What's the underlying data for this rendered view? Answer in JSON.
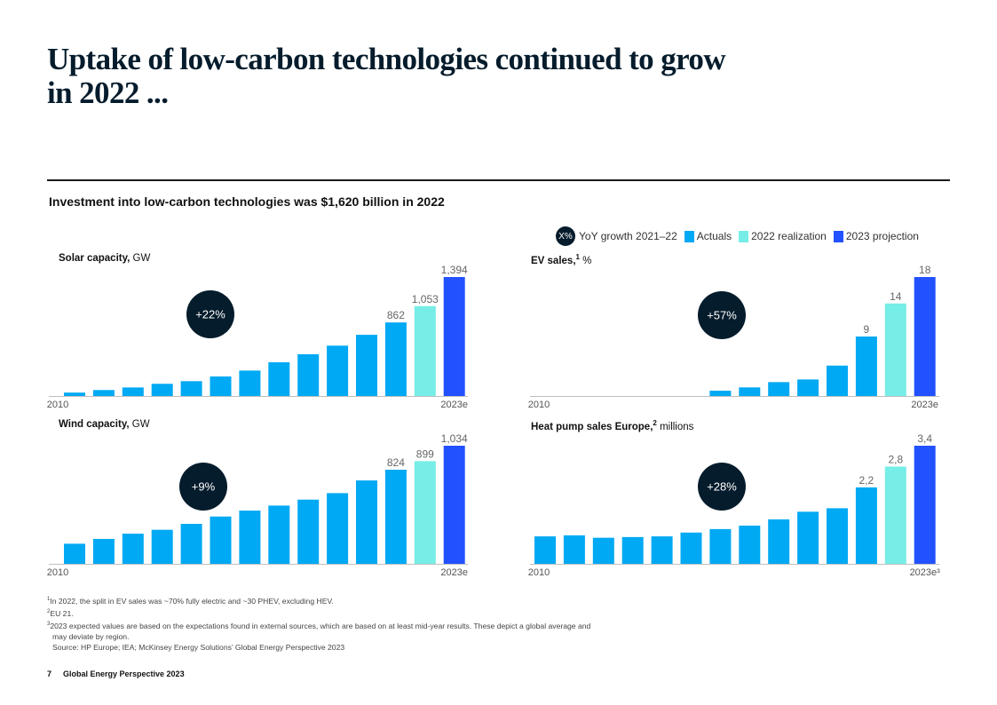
{
  "page": {
    "title_line1": "Uptake of low-carbon technologies continued to grow",
    "title_line2": "in 2022 ...",
    "subtitle": "Investment into low-carbon technologies was $1,620 billion in 2022"
  },
  "legend": {
    "circle_label": "X%",
    "items": [
      {
        "label": "YoY growth 2021–22",
        "type": "circle"
      },
      {
        "label": "Actuals",
        "color": "#00A9F4"
      },
      {
        "label": "2022 realization",
        "color": "#76EDE6"
      },
      {
        "label": "2023 projection",
        "color": "#2251FF"
      }
    ]
  },
  "colors": {
    "actuals": "#00A9F4",
    "realization": "#76EDE6",
    "projection": "#2251FF",
    "growth_circle": "#051C2C",
    "axis": "#BFBFBF",
    "label": "#666666"
  },
  "chart_data": [
    {
      "type": "bar",
      "id": "solar",
      "title": "Solar capacity,",
      "unit": "GW",
      "footnote_mark": "",
      "categories": [
        "2010",
        "2011",
        "2012",
        "2013",
        "2014",
        "2015",
        "2016",
        "2017",
        "2018",
        "2019",
        "2020",
        "2021",
        "2022",
        "2023e"
      ],
      "x_tick_labels": {
        "first": "2010",
        "last": "2023e"
      },
      "values": [
        40,
        70,
        100,
        143,
        174,
        229,
        298,
        395,
        489,
        590,
        717,
        862,
        1053,
        1394
      ],
      "bar_types": [
        "actual",
        "actual",
        "actual",
        "actual",
        "actual",
        "actual",
        "actual",
        "actual",
        "actual",
        "actual",
        "actual",
        "actual",
        "realization",
        "projection"
      ],
      "data_labels": {
        "11": "862",
        "12": "1,053",
        "13": "1,394"
      },
      "growth": "+22%",
      "ylim": [
        0,
        1394
      ]
    },
    {
      "type": "bar",
      "id": "ev",
      "title": "EV sales,",
      "unit": "%",
      "footnote_mark": "1",
      "categories": [
        "2010",
        "2011",
        "2012",
        "2013",
        "2014",
        "2015",
        "2016",
        "2017",
        "2018",
        "2019",
        "2020",
        "2021",
        "2022",
        "2023e"
      ],
      "x_tick_labels": {
        "first": "2010",
        "last": "2023e"
      },
      "values": [
        0,
        0,
        0,
        0,
        0,
        0,
        0.8,
        1.3,
        2.1,
        2.5,
        4.6,
        9,
        14,
        18
      ],
      "bar_types": [
        "actual",
        "actual",
        "actual",
        "actual",
        "actual",
        "actual",
        "actual",
        "actual",
        "actual",
        "actual",
        "actual",
        "actual",
        "realization",
        "projection"
      ],
      "data_labels": {
        "11": "9",
        "12": "14",
        "13": "18"
      },
      "growth": "+57%",
      "ylim": [
        0,
        18
      ]
    },
    {
      "type": "bar",
      "id": "wind",
      "title": "Wind capacity,",
      "unit": "GW",
      "footnote_mark": "",
      "categories": [
        "2010",
        "2011",
        "2012",
        "2013",
        "2014",
        "2015",
        "2016",
        "2017",
        "2018",
        "2019",
        "2020",
        "2021",
        "2022",
        "2023e"
      ],
      "x_tick_labels": {
        "first": "2010",
        "last": "2023e"
      },
      "values": [
        176,
        218,
        264,
        298,
        350,
        414,
        466,
        510,
        562,
        619,
        730,
        824,
        899,
        1034
      ],
      "bar_types": [
        "actual",
        "actual",
        "actual",
        "actual",
        "actual",
        "actual",
        "actual",
        "actual",
        "actual",
        "actual",
        "actual",
        "actual",
        "realization",
        "projection"
      ],
      "data_labels": {
        "11": "824",
        "12": "899",
        "13": "1,034"
      },
      "growth": "+9%",
      "ylim": [
        0,
        1034
      ]
    },
    {
      "type": "bar",
      "id": "heatpump",
      "title": "Heat pump sales Europe,",
      "unit": "millions",
      "footnote_mark": "2",
      "categories": [
        "2010",
        "2011",
        "2012",
        "2013",
        "2014",
        "2015",
        "2016",
        "2017",
        "2018",
        "2019",
        "2020",
        "2021",
        "2022",
        "2023e"
      ],
      "x_tick_labels": {
        "first": "2010",
        "last": "2023e³"
      },
      "values": [
        0.79,
        0.82,
        0.75,
        0.77,
        0.79,
        0.9,
        1.0,
        1.1,
        1.28,
        1.5,
        1.6,
        2.2,
        2.8,
        3.4
      ],
      "bar_types": [
        "actual",
        "actual",
        "actual",
        "actual",
        "actual",
        "actual",
        "actual",
        "actual",
        "actual",
        "actual",
        "actual",
        "actual",
        "realization",
        "projection"
      ],
      "data_labels": {
        "11": "2,2",
        "12": "2,8",
        "13": "3,4"
      },
      "growth": "+28%",
      "ylim": [
        0,
        3.4
      ]
    }
  ],
  "footnotes": [
    {
      "mark": "1",
      "text": "In 2022, the split in EV sales was ~70% fully electric and ~30 PHEV, excluding HEV."
    },
    {
      "mark": "2",
      "text": "EU 21."
    },
    {
      "mark": "3",
      "text": "2023 expected values are based on the expectations found in external sources, which are based on at least mid-year results. These depict a global average and"
    },
    {
      "mark": "",
      "text": "may deviate by region."
    },
    {
      "mark": "",
      "text": "Source: HP Europe; IEA; McKinsey Energy Solutions’ Global Energy Perspective 2023"
    }
  ],
  "footer": {
    "page_number": "7",
    "publication": "Global Energy Perspective 2023"
  }
}
